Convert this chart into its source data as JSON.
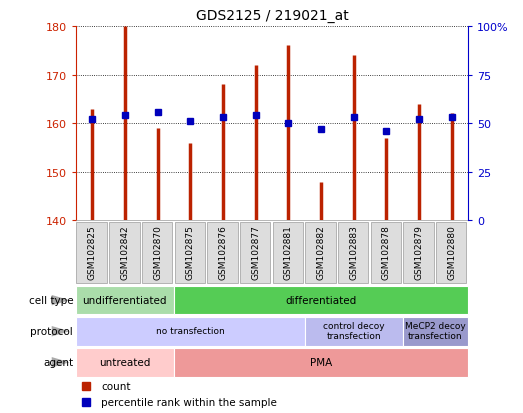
{
  "title": "GDS2125 / 219021_at",
  "samples": [
    "GSM102825",
    "GSM102842",
    "GSM102870",
    "GSM102875",
    "GSM102876",
    "GSM102877",
    "GSM102881",
    "GSM102882",
    "GSM102883",
    "GSM102878",
    "GSM102879",
    "GSM102880"
  ],
  "counts": [
    163,
    180,
    159,
    156,
    168,
    172,
    176,
    148,
    174,
    157,
    164,
    162
  ],
  "percentiles": [
    52,
    54,
    56,
    51,
    53,
    54,
    50,
    47,
    53,
    46,
    52,
    53
  ],
  "y_min": 140,
  "y_max": 180,
  "y_ticks_left": [
    140,
    150,
    160,
    170,
    180
  ],
  "y_ticks_right": [
    0,
    25,
    50,
    75,
    100
  ],
  "bar_color": "#bb2200",
  "dot_color": "#0000bb",
  "cell_type_groups": [
    {
      "label": "undifferentiated",
      "start": 0,
      "end": 3,
      "color": "#aaddaa"
    },
    {
      "label": "differentiated",
      "start": 3,
      "end": 12,
      "color": "#55cc55"
    }
  ],
  "protocol_groups": [
    {
      "label": "no transfection",
      "start": 0,
      "end": 7,
      "color": "#ccccff"
    },
    {
      "label": "control decoy\ntransfection",
      "start": 7,
      "end": 10,
      "color": "#bbbbee"
    },
    {
      "label": "MeCP2 decoy\ntransfection",
      "start": 10,
      "end": 12,
      "color": "#9999cc"
    }
  ],
  "agent_groups": [
    {
      "label": "untreated",
      "start": 0,
      "end": 3,
      "color": "#ffcccc"
    },
    {
      "label": "PMA",
      "start": 3,
      "end": 12,
      "color": "#ee9999"
    }
  ],
  "row_labels": [
    "cell type",
    "protocol",
    "agent"
  ],
  "legend_items": [
    {
      "color": "#bb2200",
      "label": "count"
    },
    {
      "color": "#0000bb",
      "label": "percentile rank within the sample"
    }
  ],
  "axis_color_left": "#cc2200",
  "axis_color_right": "#0000cc",
  "background_color": "#ffffff",
  "plot_bg_color": "#ffffff",
  "box_color": "#dddddd",
  "box_edge_color": "#aaaaaa"
}
